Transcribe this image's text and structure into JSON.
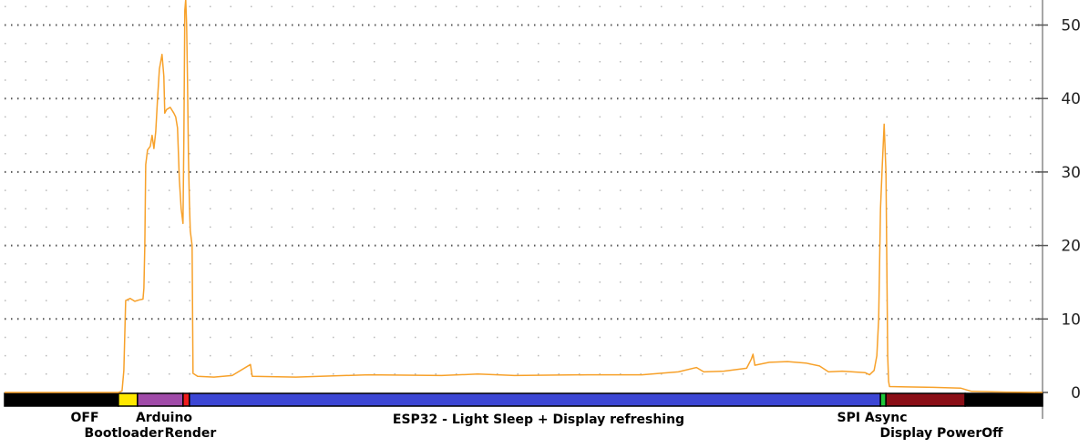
{
  "chart_data": {
    "type": "line",
    "title": "",
    "xlabel": "",
    "ylabel": "",
    "ylim": [
      0,
      53
    ],
    "y_ticks": [
      0,
      10,
      20,
      30,
      40,
      50
    ],
    "y_tick_labels": [
      "0",
      "10",
      "20",
      "30",
      "40",
      "50"
    ],
    "y_axis_side": "right",
    "grid": true,
    "line_color": "#f7a12a",
    "x_domain": [
      0,
      1140
    ],
    "series": [
      {
        "points": [
          [
            0,
            0
          ],
          [
            125,
            0
          ],
          [
            129,
            0.2
          ],
          [
            131,
            3
          ],
          [
            133,
            12.5
          ],
          [
            138,
            12.8
          ],
          [
            143,
            12.4
          ],
          [
            148,
            12.6
          ],
          [
            152,
            12.7
          ],
          [
            153,
            14.2
          ],
          [
            154,
            20
          ],
          [
            155,
            31
          ],
          [
            157,
            33
          ],
          [
            160,
            33.5
          ],
          [
            162,
            35
          ],
          [
            164,
            33.2
          ],
          [
            166,
            35.5
          ],
          [
            168,
            40
          ],
          [
            170,
            44
          ],
          [
            173,
            46
          ],
          [
            175,
            43
          ],
          [
            176,
            38
          ],
          [
            178,
            38.5
          ],
          [
            182,
            38.8
          ],
          [
            186,
            38
          ],
          [
            188,
            37.5
          ],
          [
            190,
            36
          ],
          [
            192,
            29
          ],
          [
            194,
            25
          ],
          [
            196,
            23
          ],
          [
            197,
            35
          ],
          [
            198,
            52
          ],
          [
            199,
            53.5
          ],
          [
            200,
            50
          ],
          [
            201,
            42
          ],
          [
            202,
            32
          ],
          [
            203,
            26
          ],
          [
            204,
            22
          ],
          [
            206,
            20
          ],
          [
            207,
            2.6
          ],
          [
            212,
            2.2
          ],
          [
            230,
            2.1
          ],
          [
            250,
            2.3
          ],
          [
            270,
            3.8
          ],
          [
            272,
            2.2
          ],
          [
            320,
            2.1
          ],
          [
            400,
            2.4
          ],
          [
            480,
            2.3
          ],
          [
            520,
            2.5
          ],
          [
            560,
            2.3
          ],
          [
            640,
            2.4
          ],
          [
            700,
            2.4
          ],
          [
            740,
            2.8
          ],
          [
            760,
            3.4
          ],
          [
            768,
            2.8
          ],
          [
            790,
            2.9
          ],
          [
            815,
            3.3
          ],
          [
            820,
            4.5
          ],
          [
            822,
            5.2
          ],
          [
            824,
            3.7
          ],
          [
            840,
            4.1
          ],
          [
            860,
            4.2
          ],
          [
            880,
            4
          ],
          [
            895,
            3.6
          ],
          [
            905,
            2.8
          ],
          [
            920,
            2.9
          ],
          [
            945,
            2.7
          ],
          [
            950,
            2.4
          ],
          [
            955,
            3
          ],
          [
            958,
            5
          ],
          [
            960,
            10
          ],
          [
            962,
            25
          ],
          [
            964,
            31
          ],
          [
            966,
            36.5
          ],
          [
            968,
            30
          ],
          [
            969,
            18
          ],
          [
            970,
            5
          ],
          [
            971,
            1.5
          ],
          [
            972,
            0.8
          ],
          [
            990,
            0.75
          ],
          [
            1020,
            0.7
          ],
          [
            1050,
            0.6
          ],
          [
            1062,
            0.15
          ],
          [
            1100,
            0.05
          ],
          [
            1140,
            0
          ]
        ]
      }
    ],
    "phases": [
      {
        "name": "OFF",
        "start": 0,
        "end": 125,
        "color": "#000000"
      },
      {
        "name": "Bootloader",
        "start": 125,
        "end": 146,
        "color": "#ffe800"
      },
      {
        "name": "Arduino",
        "start": 146,
        "end": 196,
        "color": "#a04aa8"
      },
      {
        "name": "Render",
        "start": 196,
        "end": 203,
        "color": "#ee1c1c"
      },
      {
        "name": "ESP32 - Light Sleep + Display refreshing",
        "start": 203,
        "end": 962,
        "color": "#3c46d4"
      },
      {
        "name": "SPI Async",
        "start": 962,
        "end": 968,
        "color": "#1ec73a"
      },
      {
        "name": "Display PowerOff",
        "start": 968,
        "end": 1055,
        "color": "#8a0e16"
      },
      {
        "name": "",
        "start": 1055,
        "end": 1140,
        "color": "#000000"
      }
    ]
  }
}
